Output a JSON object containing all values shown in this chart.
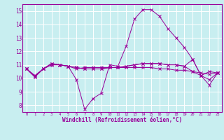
{
  "xlabel": "Windchill (Refroidissement éolien,°C)",
  "background_color": "#c8eef0",
  "grid_color": "#ffffff",
  "line_color": "#990099",
  "x_ticks": [
    0,
    1,
    2,
    3,
    4,
    5,
    6,
    7,
    8,
    9,
    10,
    11,
    12,
    13,
    14,
    15,
    16,
    17,
    18,
    19,
    20,
    21,
    22,
    23
  ],
  "y_ticks": [
    8,
    9,
    10,
    11,
    12,
    13,
    14,
    15
  ],
  "ylim": [
    7.5,
    15.5
  ],
  "xlim": [
    -0.5,
    23.5
  ],
  "lines": [
    [
      10.7,
      10.1,
      10.7,
      11.1,
      11.0,
      10.9,
      9.9,
      7.7,
      8.5,
      8.9,
      11.0,
      10.9,
      12.4,
      14.4,
      15.1,
      15.1,
      14.6,
      13.7,
      13.0,
      12.3,
      11.4,
      10.2,
      9.5,
      10.4
    ],
    [
      10.7,
      10.1,
      10.7,
      11.1,
      11.0,
      10.9,
      10.7,
      10.8,
      10.8,
      10.8,
      10.8,
      10.8,
      10.8,
      10.8,
      10.8,
      10.8,
      10.7,
      10.7,
      10.6,
      10.6,
      10.5,
      10.4,
      10.3,
      10.4
    ],
    [
      10.7,
      10.2,
      10.7,
      11.0,
      11.0,
      10.9,
      10.8,
      10.7,
      10.7,
      10.7,
      10.8,
      10.8,
      10.9,
      11.0,
      11.1,
      11.1,
      11.1,
      11.0,
      11.0,
      10.9,
      11.4,
      10.2,
      10.5,
      10.4
    ],
    [
      10.7,
      10.2,
      10.7,
      11.0,
      11.0,
      10.9,
      10.8,
      10.7,
      10.7,
      10.7,
      10.8,
      10.8,
      10.9,
      11.0,
      11.1,
      11.1,
      11.1,
      11.0,
      11.0,
      10.9,
      10.5,
      10.2,
      9.9,
      10.4
    ]
  ]
}
